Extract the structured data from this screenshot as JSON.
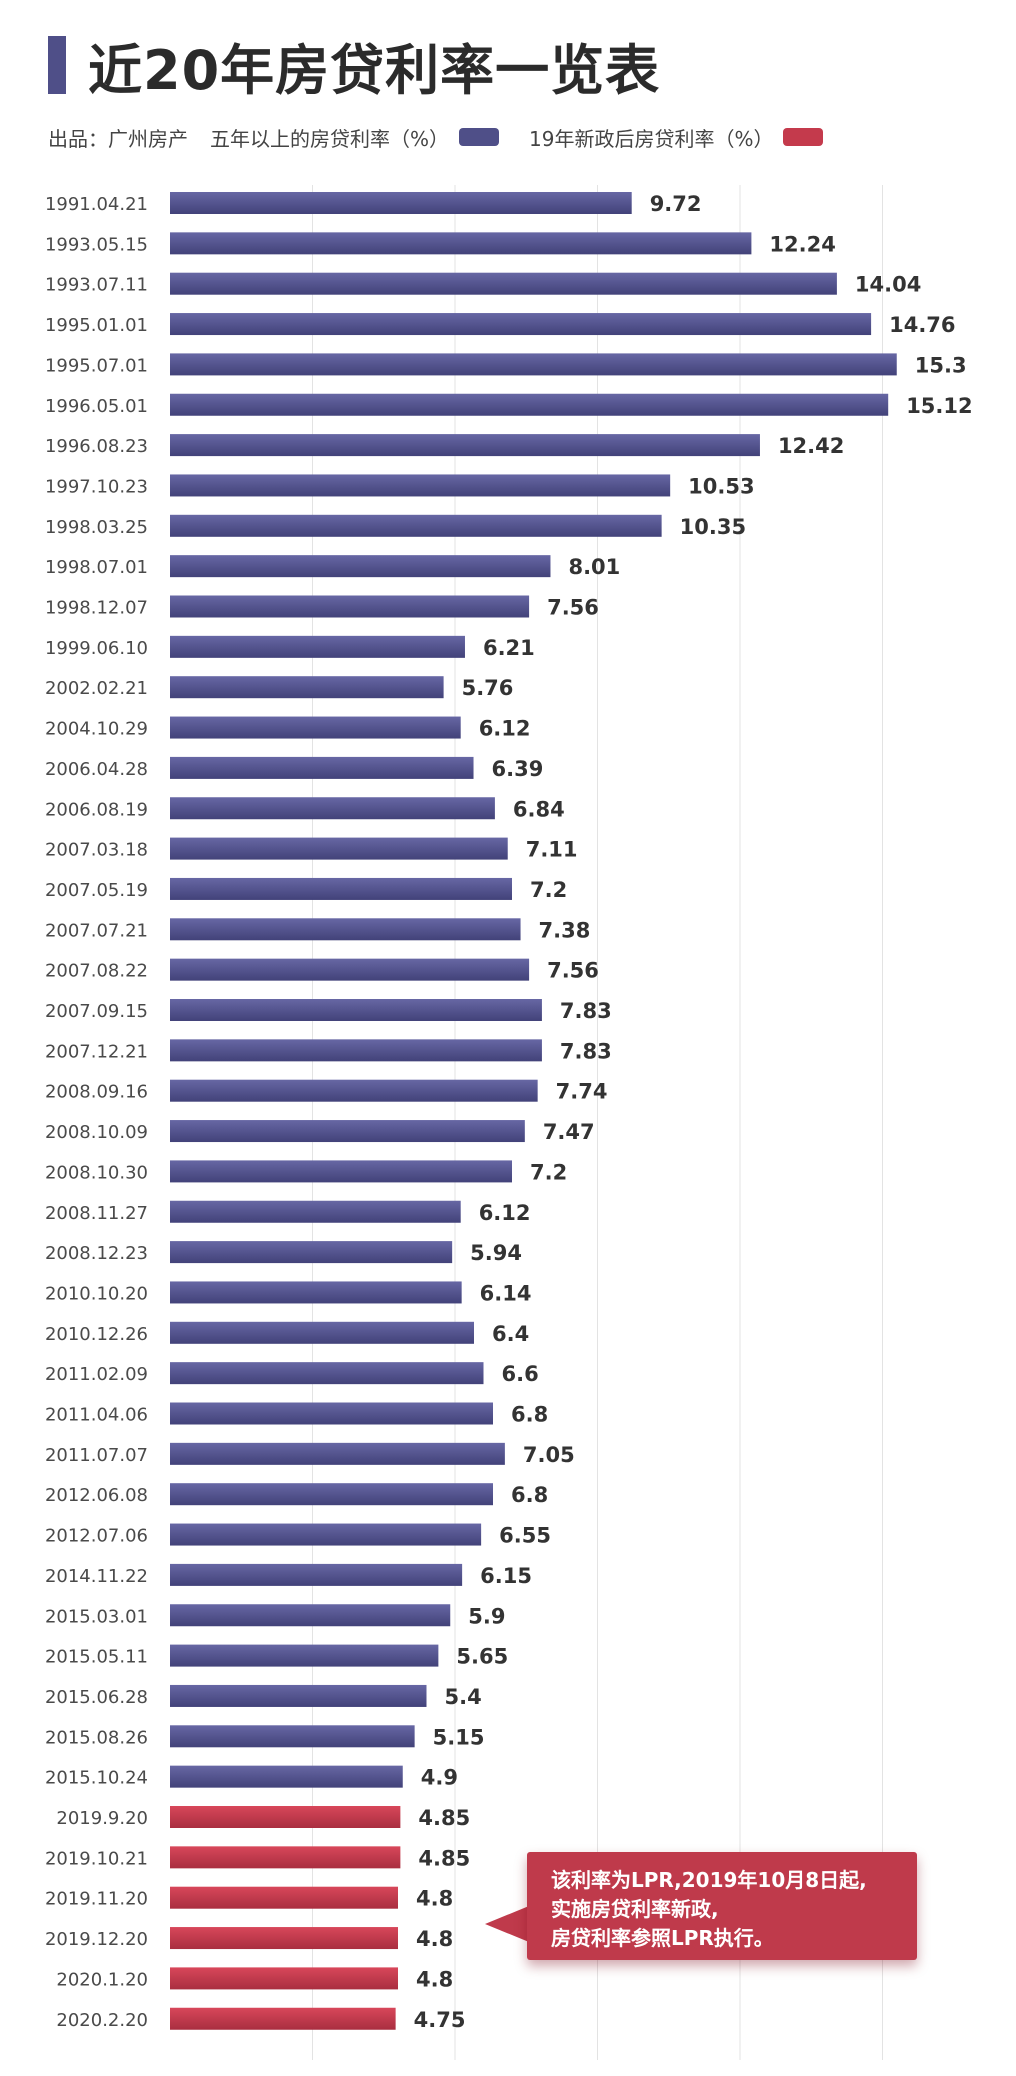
{
  "title": "近20年房贷利率一览表",
  "source": "出品：广州房产",
  "legend": [
    {
      "label": "五年以上的房贷利率（%）",
      "color": "#4f4f88"
    },
    {
      "label": "19年新政后房贷利率（%）",
      "color": "#c43a4c"
    }
  ],
  "callout": {
    "lines": [
      "该利率为LPR,2019年10月8日起,",
      "实施房贷利率新政,",
      "房贷利率参照LPR执行。"
    ]
  },
  "chart_data": {
    "type": "bar",
    "orientation": "horizontal",
    "xlim": [
      0,
      20
    ],
    "grid": true,
    "categories": [
      "1991.04.21",
      "1993.05.15",
      "1993.07.11",
      "1995.01.01",
      "1995.07.01",
      "1996.05.01",
      "1996.08.23",
      "1997.10.23",
      "1998.03.25",
      "1998.07.01",
      "1998.12.07",
      "1999.06.10",
      "2002.02.21",
      "2004.10.29",
      "2006.04.28",
      "2006.08.19",
      "2007.03.18",
      "2007.05.19",
      "2007.07.21",
      "2007.08.22",
      "2007.09.15",
      "2007.12.21",
      "2008.09.16",
      "2008.10.09",
      "2008.10.30",
      "2008.11.27",
      "2008.12.23",
      "2010.10.20",
      "2010.12.26",
      "2011.02.09",
      "2011.04.06",
      "2011.07.07",
      "2012.06.08",
      "2012.07.06",
      "2014.11.22",
      "2015.03.01",
      "2015.05.11",
      "2015.06.28",
      "2015.08.26",
      "2015.10.24",
      "2019.9.20",
      "2019.10.21",
      "2019.11.20",
      "2019.12.20",
      "2020.1.20",
      "2020.2.20"
    ],
    "series": [
      {
        "name": "五年以上的房贷利率（%）",
        "color": "#4f4f88",
        "values": [
          9.72,
          12.24,
          14.04,
          14.76,
          15.3,
          15.12,
          12.42,
          10.53,
          10.35,
          8.01,
          7.56,
          6.21,
          5.76,
          6.12,
          6.39,
          6.84,
          7.11,
          7.2,
          7.38,
          7.56,
          7.83,
          7.83,
          7.74,
          7.47,
          7.2,
          6.12,
          5.94,
          6.14,
          6.4,
          6.6,
          6.8,
          7.05,
          6.8,
          6.55,
          6.15,
          5.9,
          5.65,
          5.4,
          5.15,
          4.9,
          null,
          null,
          null,
          null,
          null,
          null
        ]
      },
      {
        "name": "19年新政后房贷利率（%）",
        "color": "#c43a4c",
        "values": [
          null,
          null,
          null,
          null,
          null,
          null,
          null,
          null,
          null,
          null,
          null,
          null,
          null,
          null,
          null,
          null,
          null,
          null,
          null,
          null,
          null,
          null,
          null,
          null,
          null,
          null,
          null,
          null,
          null,
          null,
          null,
          null,
          null,
          null,
          null,
          null,
          null,
          null,
          null,
          null,
          4.85,
          4.85,
          4.8,
          4.8,
          4.8,
          4.75
        ]
      }
    ],
    "value_labels": [
      "9.72",
      "12.24",
      "14.04",
      "14.76",
      "15.3",
      "15.12",
      "12.42",
      "10.53",
      "10.35",
      "8.01",
      "7.56",
      "6.21",
      "5.76",
      "6.12",
      "6.39",
      "6.84",
      "7.11",
      "7.2",
      "7.38",
      "7.56",
      "7.83",
      "7.83",
      "7.74",
      "7.47",
      "7.2",
      "6.12",
      "5.94",
      "6.14",
      "6.4",
      "6.6",
      "6.8",
      "7.05",
      "6.8",
      "6.55",
      "6.15",
      "5.9",
      "5.65",
      "5.4",
      "5.15",
      "4.9",
      "4.85",
      "4.85",
      "4.8",
      "4.8",
      "4.8",
      "4.75"
    ]
  }
}
